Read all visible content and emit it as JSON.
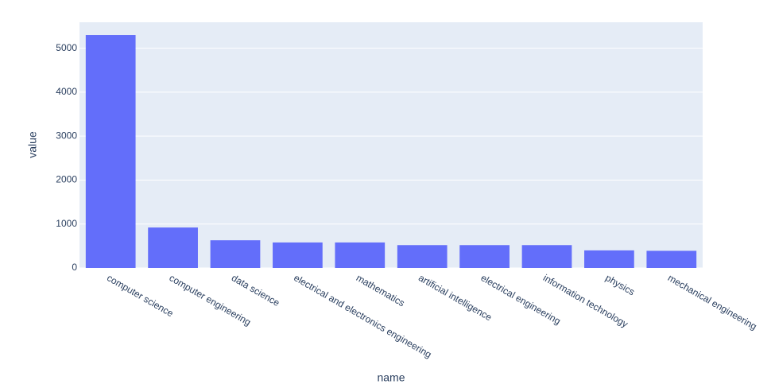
{
  "chart_data": {
    "type": "bar",
    "x_label": "name",
    "y_label": "value",
    "categories": [
      "computer science",
      "computer engineering",
      "data science",
      "electrical and electronics engineering",
      "mathematics",
      "artificial intelligence",
      "electrical engineering",
      "information technology",
      "physics",
      "mechanical engineering"
    ],
    "values": [
      5300,
      920,
      630,
      580,
      580,
      520,
      520,
      520,
      400,
      390
    ],
    "color": "#636efa",
    "ylim": [
      0,
      5590
    ],
    "yticks": [
      0,
      1000,
      2000,
      3000,
      4000,
      5000
    ],
    "grid": true
  }
}
